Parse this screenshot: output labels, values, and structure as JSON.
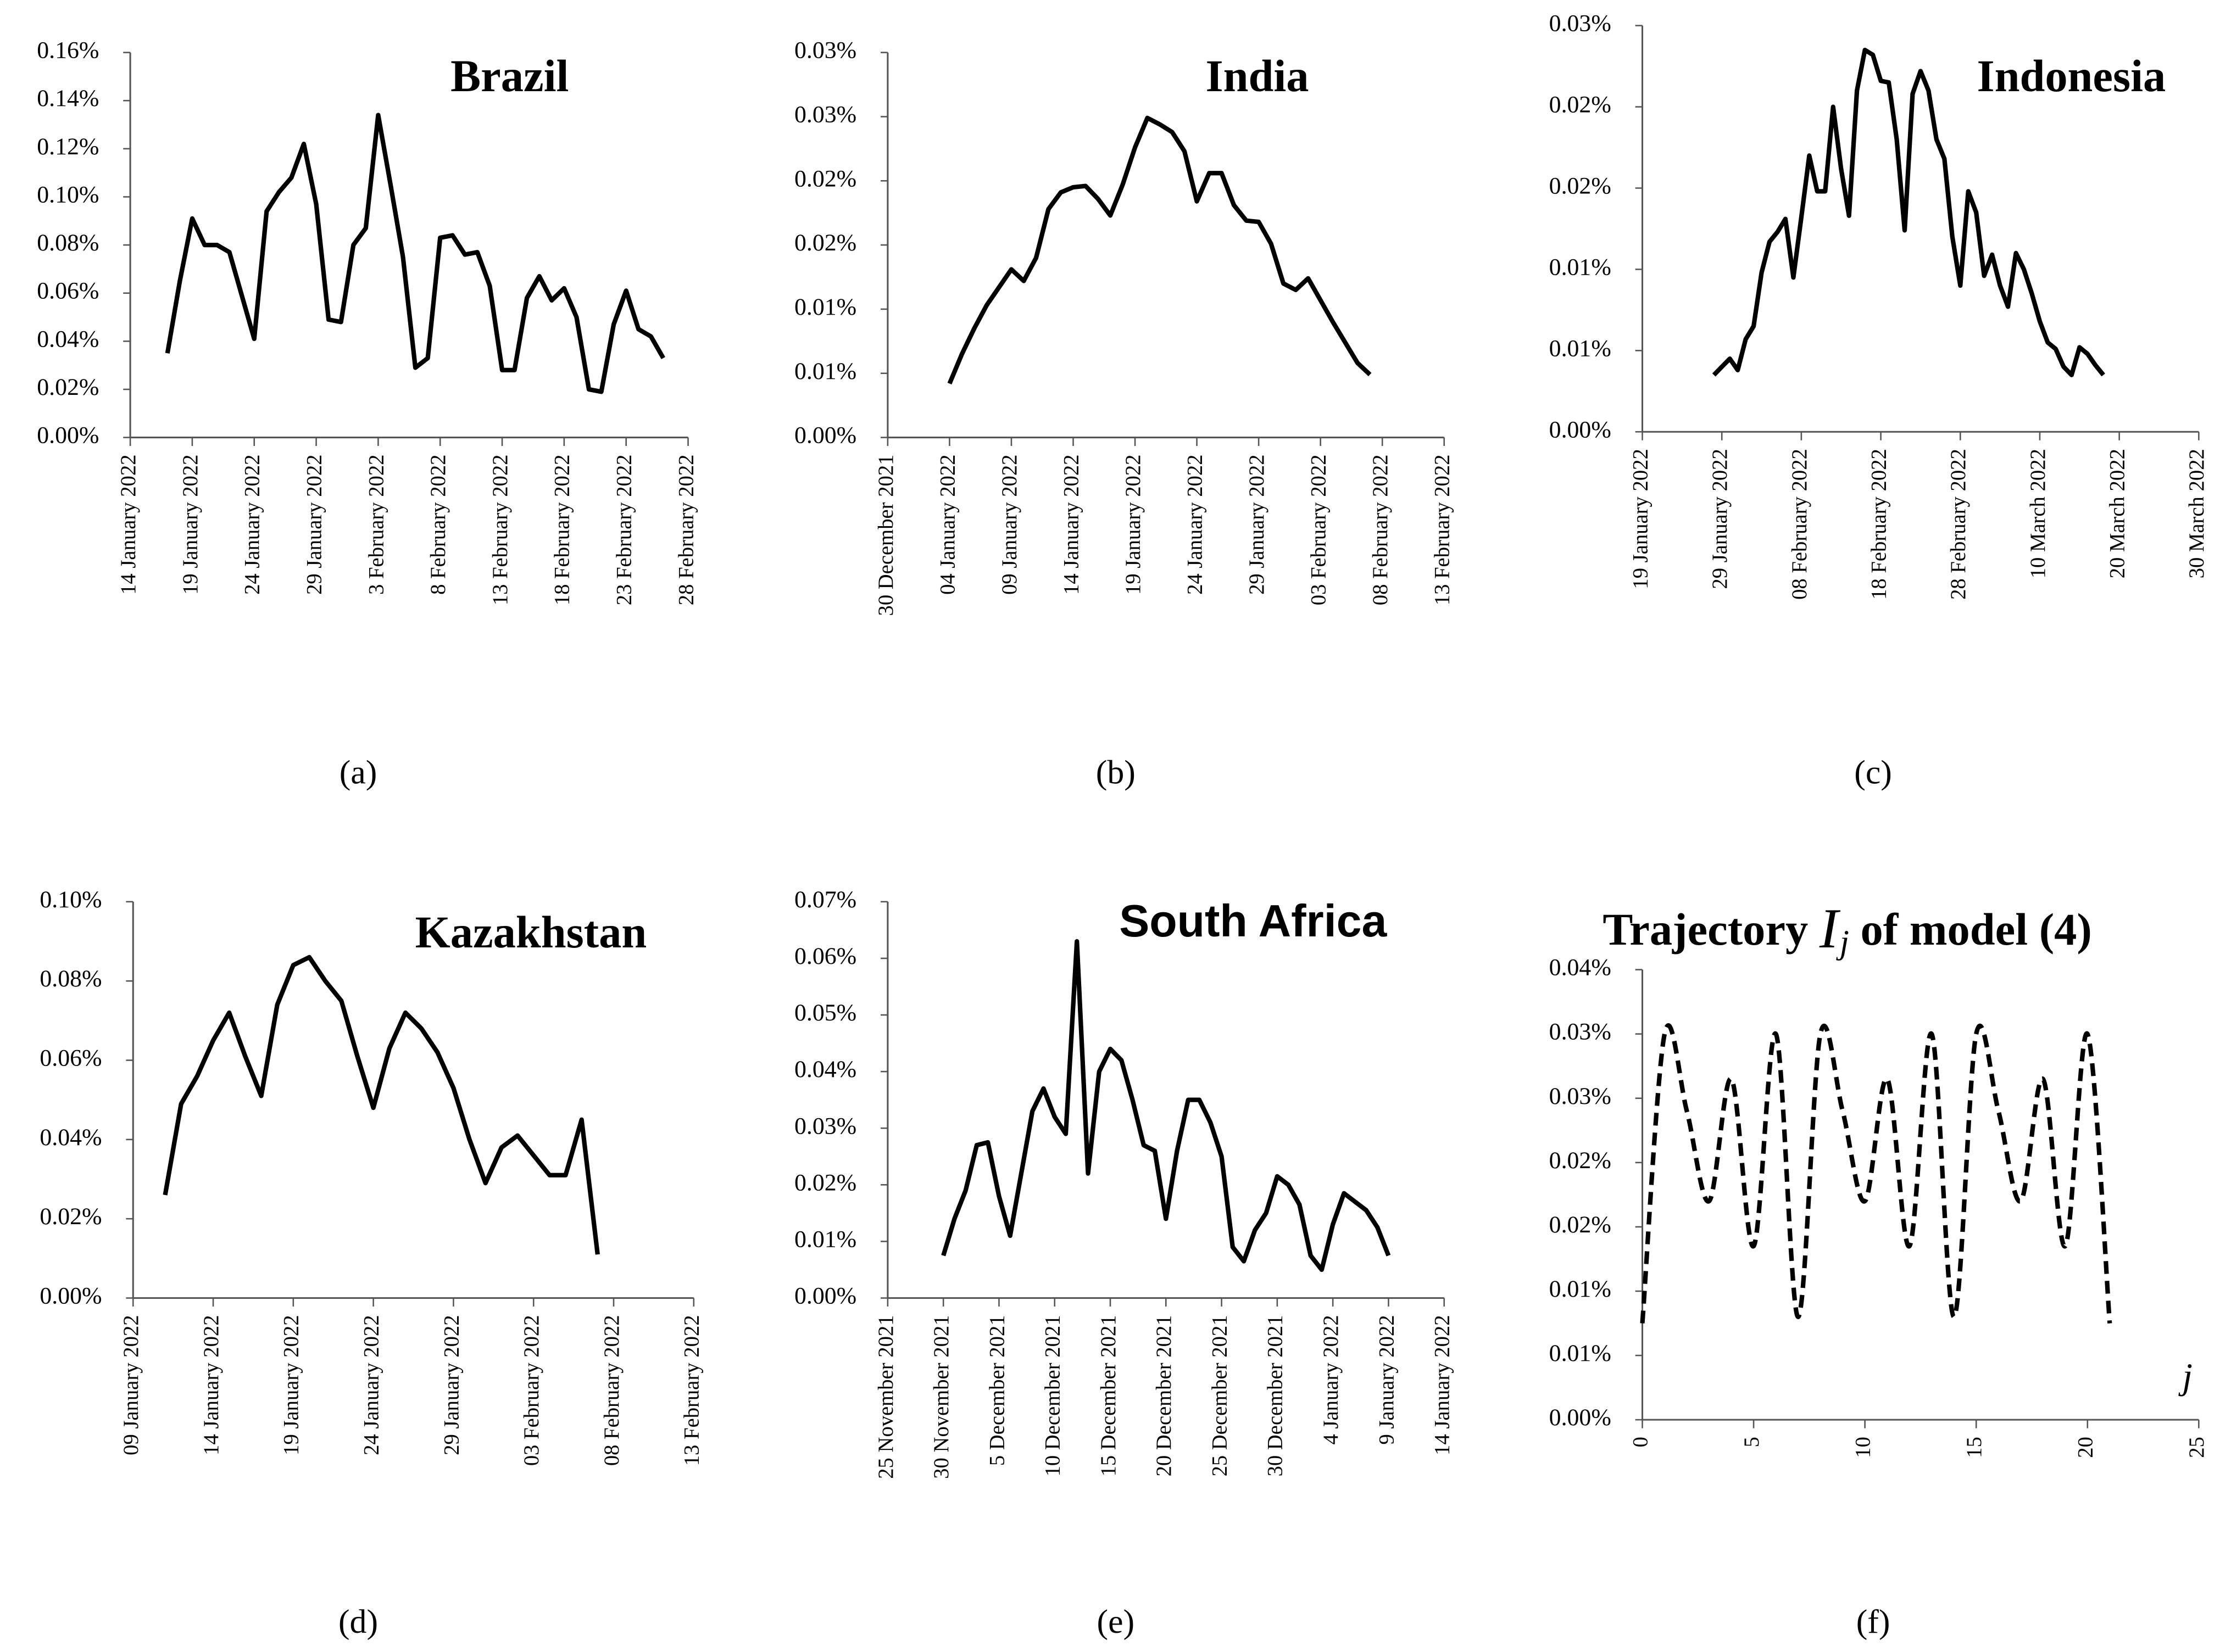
{
  "chart_data": [
    {
      "type": "line",
      "title": "Brazil",
      "panel_label": "(a)",
      "color": "#000000",
      "x": [
        "2022-01-17",
        "2022-01-18",
        "2022-01-19",
        "2022-01-20",
        "2022-01-21",
        "2022-01-22",
        "2022-01-23",
        "2022-01-24",
        "2022-01-25",
        "2022-01-26",
        "2022-01-27",
        "2022-01-28",
        "2022-01-29",
        "2022-01-30",
        "2022-01-31",
        "2022-02-01",
        "2022-02-02",
        "2022-02-03",
        "2022-02-04",
        "2022-02-05",
        "2022-02-06",
        "2022-02-07",
        "2022-02-08",
        "2022-02-09",
        "2022-02-10",
        "2022-02-11",
        "2022-02-12",
        "2022-02-13",
        "2022-02-14",
        "2022-02-15",
        "2022-02-16",
        "2022-02-17",
        "2022-02-18",
        "2022-02-19",
        "2022-02-20",
        "2022-02-21",
        "2022-02-22",
        "2022-02-23",
        "2022-02-24",
        "2022-02-25",
        "2022-02-26"
      ],
      "values": [
        0.035,
        0.065,
        0.091,
        0.08,
        0.08,
        0.077,
        0.059,
        0.041,
        0.094,
        0.102,
        0.108,
        0.122,
        0.097,
        0.049,
        0.048,
        0.08,
        0.087,
        0.134,
        0.105,
        0.075,
        0.029,
        0.033,
        0.083,
        0.084,
        0.076,
        0.077,
        0.063,
        0.028,
        0.028,
        0.058,
        0.067,
        0.057,
        0.062,
        0.05,
        0.02,
        0.019,
        0.047,
        0.061,
        0.045,
        0.042,
        0.033
      ],
      "xlim": [
        "2022-01-14",
        "2022-02-28"
      ],
      "xticks": [
        {
          "value": "2022-01-14",
          "label": "14 January 2022"
        },
        {
          "value": "2022-01-19",
          "label": "19 January 2022"
        },
        {
          "value": "2022-01-24",
          "label": "24 January 2022"
        },
        {
          "value": "2022-01-29",
          "label": "29 January 2022"
        },
        {
          "value": "2022-02-03",
          "label": "3 February 2022"
        },
        {
          "value": "2022-02-08",
          "label": "8 February 2022"
        },
        {
          "value": "2022-02-13",
          "label": "13 February 2022"
        },
        {
          "value": "2022-02-18",
          "label": "18 February 2022"
        },
        {
          "value": "2022-02-23",
          "label": "23 February 2022"
        },
        {
          "value": "2022-02-28",
          "label": "28 February 2022"
        }
      ],
      "ylim": [
        0,
        0.16
      ],
      "yticks": [
        {
          "value": 0,
          "label": "0.00%"
        },
        {
          "value": 0.02,
          "label": "0.02%"
        },
        {
          "value": 0.04,
          "label": "0.04%"
        },
        {
          "value": 0.06,
          "label": "0.06%"
        },
        {
          "value": 0.08,
          "label": "0.08%"
        },
        {
          "value": 0.1,
          "label": "0.10%"
        },
        {
          "value": 0.12,
          "label": "0.12%"
        },
        {
          "value": 0.14,
          "label": "0.14%"
        },
        {
          "value": 0.16,
          "label": "0.16%"
        }
      ]
    },
    {
      "type": "line",
      "title": "India",
      "panel_label": "(b)",
      "color": "#000000",
      "x": [
        "2022-01-04",
        "2022-01-05",
        "2022-01-06",
        "2022-01-07",
        "2022-01-08",
        "2022-01-09",
        "2022-01-10",
        "2022-01-11",
        "2022-01-12",
        "2022-01-13",
        "2022-01-14",
        "2022-01-15",
        "2022-01-16",
        "2022-01-17",
        "2022-01-18",
        "2022-01-19",
        "2022-01-20",
        "2022-01-21",
        "2022-01-22",
        "2022-01-23",
        "2022-01-24",
        "2022-01-25",
        "2022-01-26",
        "2022-01-27",
        "2022-01-28",
        "2022-01-29",
        "2022-01-30",
        "2022-01-31",
        "2022-02-01",
        "2022-02-02",
        "2022-02-03",
        "2022-02-04",
        "2022-02-05",
        "2022-02-06",
        "2022-02-07"
      ],
      "values": [
        0.0042,
        0.0065,
        0.0085,
        0.0103,
        0.0117,
        0.0131,
        0.0122,
        0.014,
        0.0178,
        0.0191,
        0.0195,
        0.0196,
        0.0186,
        0.0173,
        0.0197,
        0.0226,
        0.0249,
        0.0244,
        0.0238,
        0.0223,
        0.0184,
        0.0206,
        0.0206,
        0.0181,
        0.0169,
        0.0168,
        0.0151,
        0.012,
        0.0115,
        0.0124,
        0.0107,
        0.009,
        0.0074,
        0.0058,
        0.0049
      ],
      "xlim": [
        "2021-12-30",
        "2022-02-13"
      ],
      "xticks": [
        {
          "value": "2021-12-30",
          "label": "30 December 2021"
        },
        {
          "value": "2022-01-04",
          "label": "04 January 2022"
        },
        {
          "value": "2022-01-09",
          "label": "09 January 2022"
        },
        {
          "value": "2022-01-14",
          "label": "14 January 2022"
        },
        {
          "value": "2022-01-19",
          "label": "19 January 2022"
        },
        {
          "value": "2022-01-24",
          "label": "24 January 2022"
        },
        {
          "value": "2022-01-29",
          "label": "29 January 2022"
        },
        {
          "value": "2022-02-03",
          "label": "03 February 2022"
        },
        {
          "value": "2022-02-08",
          "label": "08 February 2022"
        },
        {
          "value": "2022-02-13",
          "label": "13 February 2022"
        }
      ],
      "ylim": [
        0,
        0.03
      ],
      "yticks": [
        {
          "value": 0,
          "label": "0.00%"
        },
        {
          "value": 0.005,
          "label": "0.01%"
        },
        {
          "value": 0.01,
          "label": "0.01%"
        },
        {
          "value": 0.015,
          "label": "0.02%"
        },
        {
          "value": 0.02,
          "label": "0.02%"
        },
        {
          "value": 0.025,
          "label": "0.03%"
        },
        {
          "value": 0.03,
          "label": "0.03%"
        }
      ]
    },
    {
      "type": "line",
      "title": "Indonesia",
      "panel_label": "(c)",
      "color": "#000000",
      "x": [
        "2022-01-28",
        "2022-01-29",
        "2022-01-30",
        "2022-01-31",
        "2022-02-01",
        "2022-02-02",
        "2022-02-03",
        "2022-02-04",
        "2022-02-05",
        "2022-02-06",
        "2022-02-07",
        "2022-02-08",
        "2022-02-09",
        "2022-02-10",
        "2022-02-11",
        "2022-02-12",
        "2022-02-13",
        "2022-02-14",
        "2022-02-15",
        "2022-02-16",
        "2022-02-17",
        "2022-02-18",
        "2022-02-19",
        "2022-02-20",
        "2022-02-21",
        "2022-02-22",
        "2022-02-23",
        "2022-02-24",
        "2022-02-25",
        "2022-02-26",
        "2022-02-27",
        "2022-02-28",
        "2022-03-01",
        "2022-03-02",
        "2022-03-03",
        "2022-03-04",
        "2022-03-05",
        "2022-03-06",
        "2022-03-07",
        "2022-03-08",
        "2022-03-09",
        "2022-03-10",
        "2022-03-11",
        "2022-03-12",
        "2022-03-13",
        "2022-03-14",
        "2022-03-15",
        "2022-03-16",
        "2022-03-17",
        "2022-03-18"
      ],
      "values": [
        0.0035,
        0.004,
        0.0045,
        0.0038,
        0.0057,
        0.0065,
        0.0098,
        0.0117,
        0.0123,
        0.0131,
        0.0095,
        0.0132,
        0.017,
        0.0148,
        0.0148,
        0.02,
        0.0162,
        0.0133,
        0.021,
        0.0235,
        0.0232,
        0.0216,
        0.0215,
        0.018,
        0.0124,
        0.0208,
        0.0222,
        0.021,
        0.018,
        0.0168,
        0.012,
        0.009,
        0.0148,
        0.0135,
        0.0096,
        0.0109,
        0.009,
        0.0077,
        0.011,
        0.01,
        0.0085,
        0.0068,
        0.0055,
        0.0051,
        0.004,
        0.0035,
        0.0052,
        0.0048,
        0.0041,
        0.0035
      ],
      "xlim": [
        "2022-01-19",
        "2022-03-30"
      ],
      "xticks": [
        {
          "value": "2022-01-19",
          "label": "19 January 2022"
        },
        {
          "value": "2022-01-29",
          "label": "29 January 2022"
        },
        {
          "value": "2022-02-08",
          "label": "08 February 2022"
        },
        {
          "value": "2022-02-18",
          "label": "18 February 2022"
        },
        {
          "value": "2022-02-28",
          "label": "28 February 2022"
        },
        {
          "value": "2022-03-10",
          "label": "10 March 2022"
        },
        {
          "value": "2022-03-20",
          "label": "20 March 2022"
        },
        {
          "value": "2022-03-30",
          "label": "30 March 2022"
        }
      ],
      "ylim": [
        0,
        0.025
      ],
      "yticks": [
        {
          "value": 0,
          "label": "0.00%"
        },
        {
          "value": 0.005,
          "label": "0.01%"
        },
        {
          "value": 0.01,
          "label": "0.01%"
        },
        {
          "value": 0.015,
          "label": "0.02%"
        },
        {
          "value": 0.02,
          "label": "0.02%"
        },
        {
          "value": 0.025,
          "label": "0.03%"
        }
      ]
    },
    {
      "type": "line",
      "title": "Kazakhstan",
      "panel_label": "(d)",
      "color": "#000000",
      "x": [
        "2022-01-11",
        "2022-01-12",
        "2022-01-13",
        "2022-01-14",
        "2022-01-15",
        "2022-01-16",
        "2022-01-17",
        "2022-01-18",
        "2022-01-19",
        "2022-01-20",
        "2022-01-21",
        "2022-01-22",
        "2022-01-23",
        "2022-01-24",
        "2022-01-25",
        "2022-01-26",
        "2022-01-27",
        "2022-01-28",
        "2022-01-29",
        "2022-01-30",
        "2022-01-31",
        "2022-02-01",
        "2022-02-02",
        "2022-02-03",
        "2022-02-04",
        "2022-02-05",
        "2022-02-06",
        "2022-02-07"
      ],
      "values": [
        0.026,
        0.049,
        0.056,
        0.065,
        0.072,
        0.061,
        0.051,
        0.074,
        0.084,
        0.086,
        0.08,
        0.075,
        0.061,
        0.048,
        0.063,
        0.072,
        0.068,
        0.062,
        0.053,
        0.04,
        0.029,
        0.038,
        0.041,
        0.036,
        0.031,
        0.031,
        0.045,
        0.011
      ],
      "xlim": [
        "2022-01-09",
        "2022-02-13"
      ],
      "xticks": [
        {
          "value": "2022-01-09",
          "label": "09 January 2022"
        },
        {
          "value": "2022-01-14",
          "label": "14 January 2022"
        },
        {
          "value": "2022-01-19",
          "label": "19 January 2022"
        },
        {
          "value": "2022-01-24",
          "label": "24 January 2022"
        },
        {
          "value": "2022-01-29",
          "label": "29 January 2022"
        },
        {
          "value": "2022-02-03",
          "label": "03 February 2022"
        },
        {
          "value": "2022-02-08",
          "label": "08 February 2022"
        },
        {
          "value": "2022-02-13",
          "label": "13 February 2022"
        }
      ],
      "ylim": [
        0,
        0.1
      ],
      "yticks": [
        {
          "value": 0,
          "label": "0.00%"
        },
        {
          "value": 0.02,
          "label": "0.02%"
        },
        {
          "value": 0.04,
          "label": "0.04%"
        },
        {
          "value": 0.06,
          "label": "0.06%"
        },
        {
          "value": 0.08,
          "label": "0.08%"
        },
        {
          "value": 0.1,
          "label": "0.10%"
        }
      ]
    },
    {
      "type": "line",
      "title": "South Africa",
      "panel_label": "(e)",
      "color": "#000000",
      "x": [
        "2021-11-30",
        "2021-12-01",
        "2021-12-02",
        "2021-12-03",
        "2021-12-04",
        "2021-12-05",
        "2021-12-06",
        "2021-12-07",
        "2021-12-08",
        "2021-12-09",
        "2021-12-10",
        "2021-12-11",
        "2021-12-12",
        "2021-12-13",
        "2021-12-14",
        "2021-12-15",
        "2021-12-16",
        "2021-12-17",
        "2021-12-18",
        "2021-12-19",
        "2021-12-20",
        "2021-12-21",
        "2021-12-22",
        "2021-12-23",
        "2021-12-24",
        "2021-12-25",
        "2021-12-26",
        "2021-12-27",
        "2021-12-28",
        "2021-12-29",
        "2021-12-30",
        "2021-12-31",
        "2022-01-01",
        "2022-01-02",
        "2022-01-03",
        "2022-01-04",
        "2022-01-05",
        "2022-01-06",
        "2022-01-07",
        "2022-01-08",
        "2022-01-09"
      ],
      "values": [
        0.0075,
        0.014,
        0.019,
        0.027,
        0.0275,
        0.018,
        0.011,
        0.022,
        0.033,
        0.037,
        0.032,
        0.029,
        0.063,
        0.022,
        0.04,
        0.044,
        0.042,
        0.035,
        0.027,
        0.026,
        0.014,
        0.026,
        0.035,
        0.035,
        0.031,
        0.025,
        0.009,
        0.0065,
        0.012,
        0.015,
        0.0215,
        0.02,
        0.0165,
        0.0075,
        0.005,
        0.013,
        0.0185,
        0.017,
        0.0155,
        0.0125,
        0.0075
      ],
      "xlim": [
        "2021-11-25",
        "2022-01-14"
      ],
      "xticks": [
        {
          "value": "2021-11-25",
          "label": "25 November 2021"
        },
        {
          "value": "2021-11-30",
          "label": "30 November 2021"
        },
        {
          "value": "2021-12-05",
          "label": "5 December 2021"
        },
        {
          "value": "2021-12-10",
          "label": "10 December 2021"
        },
        {
          "value": "2021-12-15",
          "label": "15 December 2021"
        },
        {
          "value": "2021-12-20",
          "label": "20 December 2021"
        },
        {
          "value": "2021-12-25",
          "label": "25 December 2021"
        },
        {
          "value": "2021-12-30",
          "label": "30 December 2021"
        },
        {
          "value": "2022-01-04",
          "label": "4 January 2022"
        },
        {
          "value": "2022-01-09",
          "label": "9 January 2022"
        },
        {
          "value": "2022-01-14",
          "label": "14 January 2022"
        }
      ],
      "ylim": [
        0,
        0.07
      ],
      "yticks": [
        {
          "value": 0,
          "label": "0.00%"
        },
        {
          "value": 0.01,
          "label": "0.01%"
        },
        {
          "value": 0.02,
          "label": "0.02%"
        },
        {
          "value": 0.03,
          "label": "0.03%"
        },
        {
          "value": 0.04,
          "label": "0.04%"
        },
        {
          "value": 0.05,
          "label": "0.05%"
        },
        {
          "value": 0.06,
          "label": "0.06%"
        },
        {
          "value": 0.07,
          "label": "0.07%"
        }
      ]
    },
    {
      "type": "line",
      "title": [
        "Trajectory",
        "I",
        "j",
        "of model (4)"
      ],
      "panel_label": "(f)",
      "xlabel": "j",
      "color": "#000000",
      "line_style": "dashed",
      "smooth": true,
      "x": [
        0,
        1,
        2,
        3,
        4,
        5,
        6,
        7,
        8,
        9,
        10,
        11,
        12,
        13,
        14,
        15,
        16,
        17,
        18,
        19,
        20,
        21
      ],
      "values": [
        0.0075,
        0.03,
        0.024,
        0.017,
        0.0265,
        0.0135,
        0.03,
        0.008,
        0.03,
        0.024,
        0.017,
        0.0265,
        0.0135,
        0.03,
        0.008,
        0.03,
        0.024,
        0.017,
        0.0265,
        0.0135,
        0.03,
        0.0075
      ],
      "xlim": [
        0,
        25
      ],
      "xticks": [
        0,
        5,
        10,
        15,
        20,
        25
      ],
      "ylim": [
        0,
        0.035
      ],
      "yticks": [
        {
          "value": 0,
          "label": "0.00%"
        },
        {
          "value": 0.005,
          "label": "0.01%"
        },
        {
          "value": 0.01,
          "label": "0.01%"
        },
        {
          "value": 0.015,
          "label": "0.02%"
        },
        {
          "value": 0.02,
          "label": "0.02%"
        },
        {
          "value": 0.025,
          "label": "0.03%"
        },
        {
          "value": 0.03,
          "label": "0.03%"
        },
        {
          "value": 0.035,
          "label": "0.04%"
        }
      ]
    }
  ]
}
